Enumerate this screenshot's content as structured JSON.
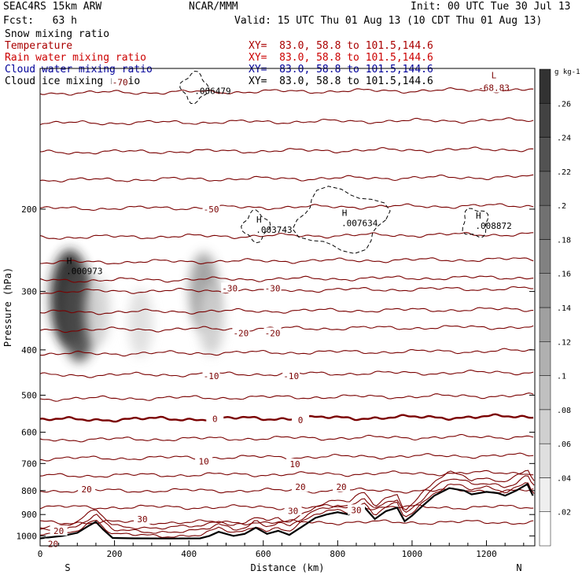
{
  "header": {
    "model": "SEAC4RS 15km ARW",
    "org": "NCAR/MMM",
    "init": "Init: 00 UTC Tue 30 Jul 13",
    "fcst": "Fcst:   63 h",
    "valid": "Valid: 15 UTC Thu 01 Aug 13 (10 CDT Thu 01 Aug 13)"
  },
  "fields": [
    {
      "label": "Snow mixing ratio",
      "color": "#000000",
      "xy": ""
    },
    {
      "label": "Temperature",
      "color": "#aa0000",
      "xy": "XY=  83.0, 58.8 to 101.5,144.6"
    },
    {
      "label": "Rain water mixing ratio",
      "color": "#cc0000",
      "xy": "XY=  83.0, 58.8 to 101.5,144.6"
    },
    {
      "label": "Cloud water mixing ratio",
      "color": "#000099",
      "xy": "XY=  83.0, 58.8 to 101.5,144.6"
    },
    {
      "label": "Cloud ice mixing ratio",
      "color": "#000000",
      "xy": "XY=  83.0, 58.8 to 101.5,144.6"
    }
  ],
  "colorbar": {
    "unit": "g kg-1",
    "ticks": [
      ".02",
      ".04",
      ".06",
      ".08",
      ".1",
      ".12",
      ".14",
      ".16",
      ".18",
      ".2",
      ".22",
      ".24",
      ".26"
    ]
  },
  "chart_data": {
    "type": "contour",
    "xlabel": "Distance (km)",
    "ylabel": "Pressure (hPa)",
    "xlim": [
      0,
      1330
    ],
    "ylim": [
      1050,
      100
    ],
    "y_scale": "log",
    "x_ticks": [
      0,
      200,
      400,
      600,
      800,
      1000,
      1200
    ],
    "y_ticks": [
      200,
      300,
      400,
      500,
      600,
      700,
      800,
      900,
      1000
    ],
    "x_end_labels": {
      "left": "S",
      "right": "N"
    },
    "temperature_contour_labels": [
      {
        "text": "-70",
        "x": 215,
        "p": 107
      },
      {
        "text": "-68.83",
        "x": 1220,
        "p": 110,
        "kind": "min",
        "marker": "L"
      },
      {
        "text": "-50",
        "x": 460,
        "p": 200
      },
      {
        "text": "-30",
        "x": 510,
        "p": 295
      },
      {
        "text": "-30",
        "x": 625,
        "p": 295
      },
      {
        "text": "-20",
        "x": 540,
        "p": 368
      },
      {
        "text": "-20",
        "x": 625,
        "p": 368
      },
      {
        "text": "-10",
        "x": 460,
        "p": 455
      },
      {
        "text": "-10",
        "x": 675,
        "p": 455
      },
      {
        "text": "0",
        "x": 470,
        "p": 562
      },
      {
        "text": "0",
        "x": 700,
        "p": 565
      },
      {
        "text": "10",
        "x": 440,
        "p": 692
      },
      {
        "text": "10",
        "x": 685,
        "p": 702
      },
      {
        "text": "20",
        "x": 125,
        "p": 795
      },
      {
        "text": "20",
        "x": 700,
        "p": 785
      },
      {
        "text": "20",
        "x": 810,
        "p": 785
      },
      {
        "text": "30",
        "x": 275,
        "p": 920
      },
      {
        "text": "30",
        "x": 680,
        "p": 883
      },
      {
        "text": "30",
        "x": 850,
        "p": 880
      },
      {
        "text": "20",
        "x": 50,
        "p": 975
      },
      {
        "text": "20",
        "x": 35,
        "p": 1040
      }
    ],
    "maxima": [
      {
        "marker": "H",
        "value": ".000973",
        "x": 70,
        "p": 272
      },
      {
        "marker": "",
        "value": ".006479",
        "x": 415,
        "p": 112
      },
      {
        "marker": "H",
        "value": ".003743",
        "x": 580,
        "p": 222
      },
      {
        "marker": "H",
        "value": ".007634",
        "x": 810,
        "p": 215
      },
      {
        "marker": "H",
        "value": ".008872",
        "x": 1170,
        "p": 218
      }
    ],
    "isotherms": [
      {
        "t": -70,
        "p": 112
      },
      {
        "t": -65,
        "p": 130
      },
      {
        "t": -60,
        "p": 150
      },
      {
        "t": -55,
        "p": 172
      },
      {
        "t": -50,
        "p": 198
      },
      {
        "t": -45,
        "p": 228
      },
      {
        "t": -40,
        "p": 258
      },
      {
        "t": -35,
        "p": 282
      },
      {
        "t": -30,
        "p": 298
      },
      {
        "t": -25,
        "p": 330
      },
      {
        "t": -20,
        "p": 360
      },
      {
        "t": -15,
        "p": 405
      },
      {
        "t": -10,
        "p": 450
      },
      {
        "t": -5,
        "p": 505
      },
      {
        "t": 0,
        "p": 560
      },
      {
        "t": 5,
        "p": 618
      },
      {
        "t": 10,
        "p": 678
      },
      {
        "t": 15,
        "p": 738
      },
      {
        "t": 20,
        "p": 800
      },
      {
        "t": 25,
        "p": 868
      },
      {
        "t": 30,
        "p": 935
      }
    ],
    "terrain_p": [
      [
        0,
        1012
      ],
      [
        60,
        1000
      ],
      [
        100,
        985
      ],
      [
        130,
        952
      ],
      [
        150,
        933
      ],
      [
        170,
        970
      ],
      [
        195,
        1010
      ],
      [
        250,
        1012
      ],
      [
        350,
        1013
      ],
      [
        430,
        1012
      ],
      [
        455,
        1000
      ],
      [
        480,
        980
      ],
      [
        500,
        990
      ],
      [
        520,
        1000
      ],
      [
        550,
        990
      ],
      [
        580,
        960
      ],
      [
        610,
        990
      ],
      [
        640,
        975
      ],
      [
        670,
        995
      ],
      [
        700,
        960
      ],
      [
        740,
        915
      ],
      [
        770,
        900
      ],
      [
        800,
        890
      ],
      [
        830,
        900
      ],
      [
        870,
        865
      ],
      [
        900,
        920
      ],
      [
        930,
        885
      ],
      [
        960,
        870
      ],
      [
        980,
        930
      ],
      [
        1000,
        905
      ],
      [
        1030,
        860
      ],
      [
        1060,
        820
      ],
      [
        1100,
        790
      ],
      [
        1140,
        800
      ],
      [
        1160,
        815
      ],
      [
        1200,
        805
      ],
      [
        1230,
        810
      ],
      [
        1250,
        820
      ],
      [
        1280,
        800
      ],
      [
        1310,
        775
      ],
      [
        1325,
        820
      ]
    ],
    "snow_shading": [
      {
        "x": 80,
        "p": 310,
        "max": 0.27
      },
      {
        "x": 105,
        "p": 340,
        "max": 0.22
      },
      {
        "x": 155,
        "p": 330,
        "max": 0.05
      },
      {
        "x": 270,
        "p": 350,
        "max": 0.04
      },
      {
        "x": 440,
        "p": 300,
        "max": 0.12
      },
      {
        "x": 460,
        "p": 345,
        "max": 0.06
      }
    ]
  }
}
